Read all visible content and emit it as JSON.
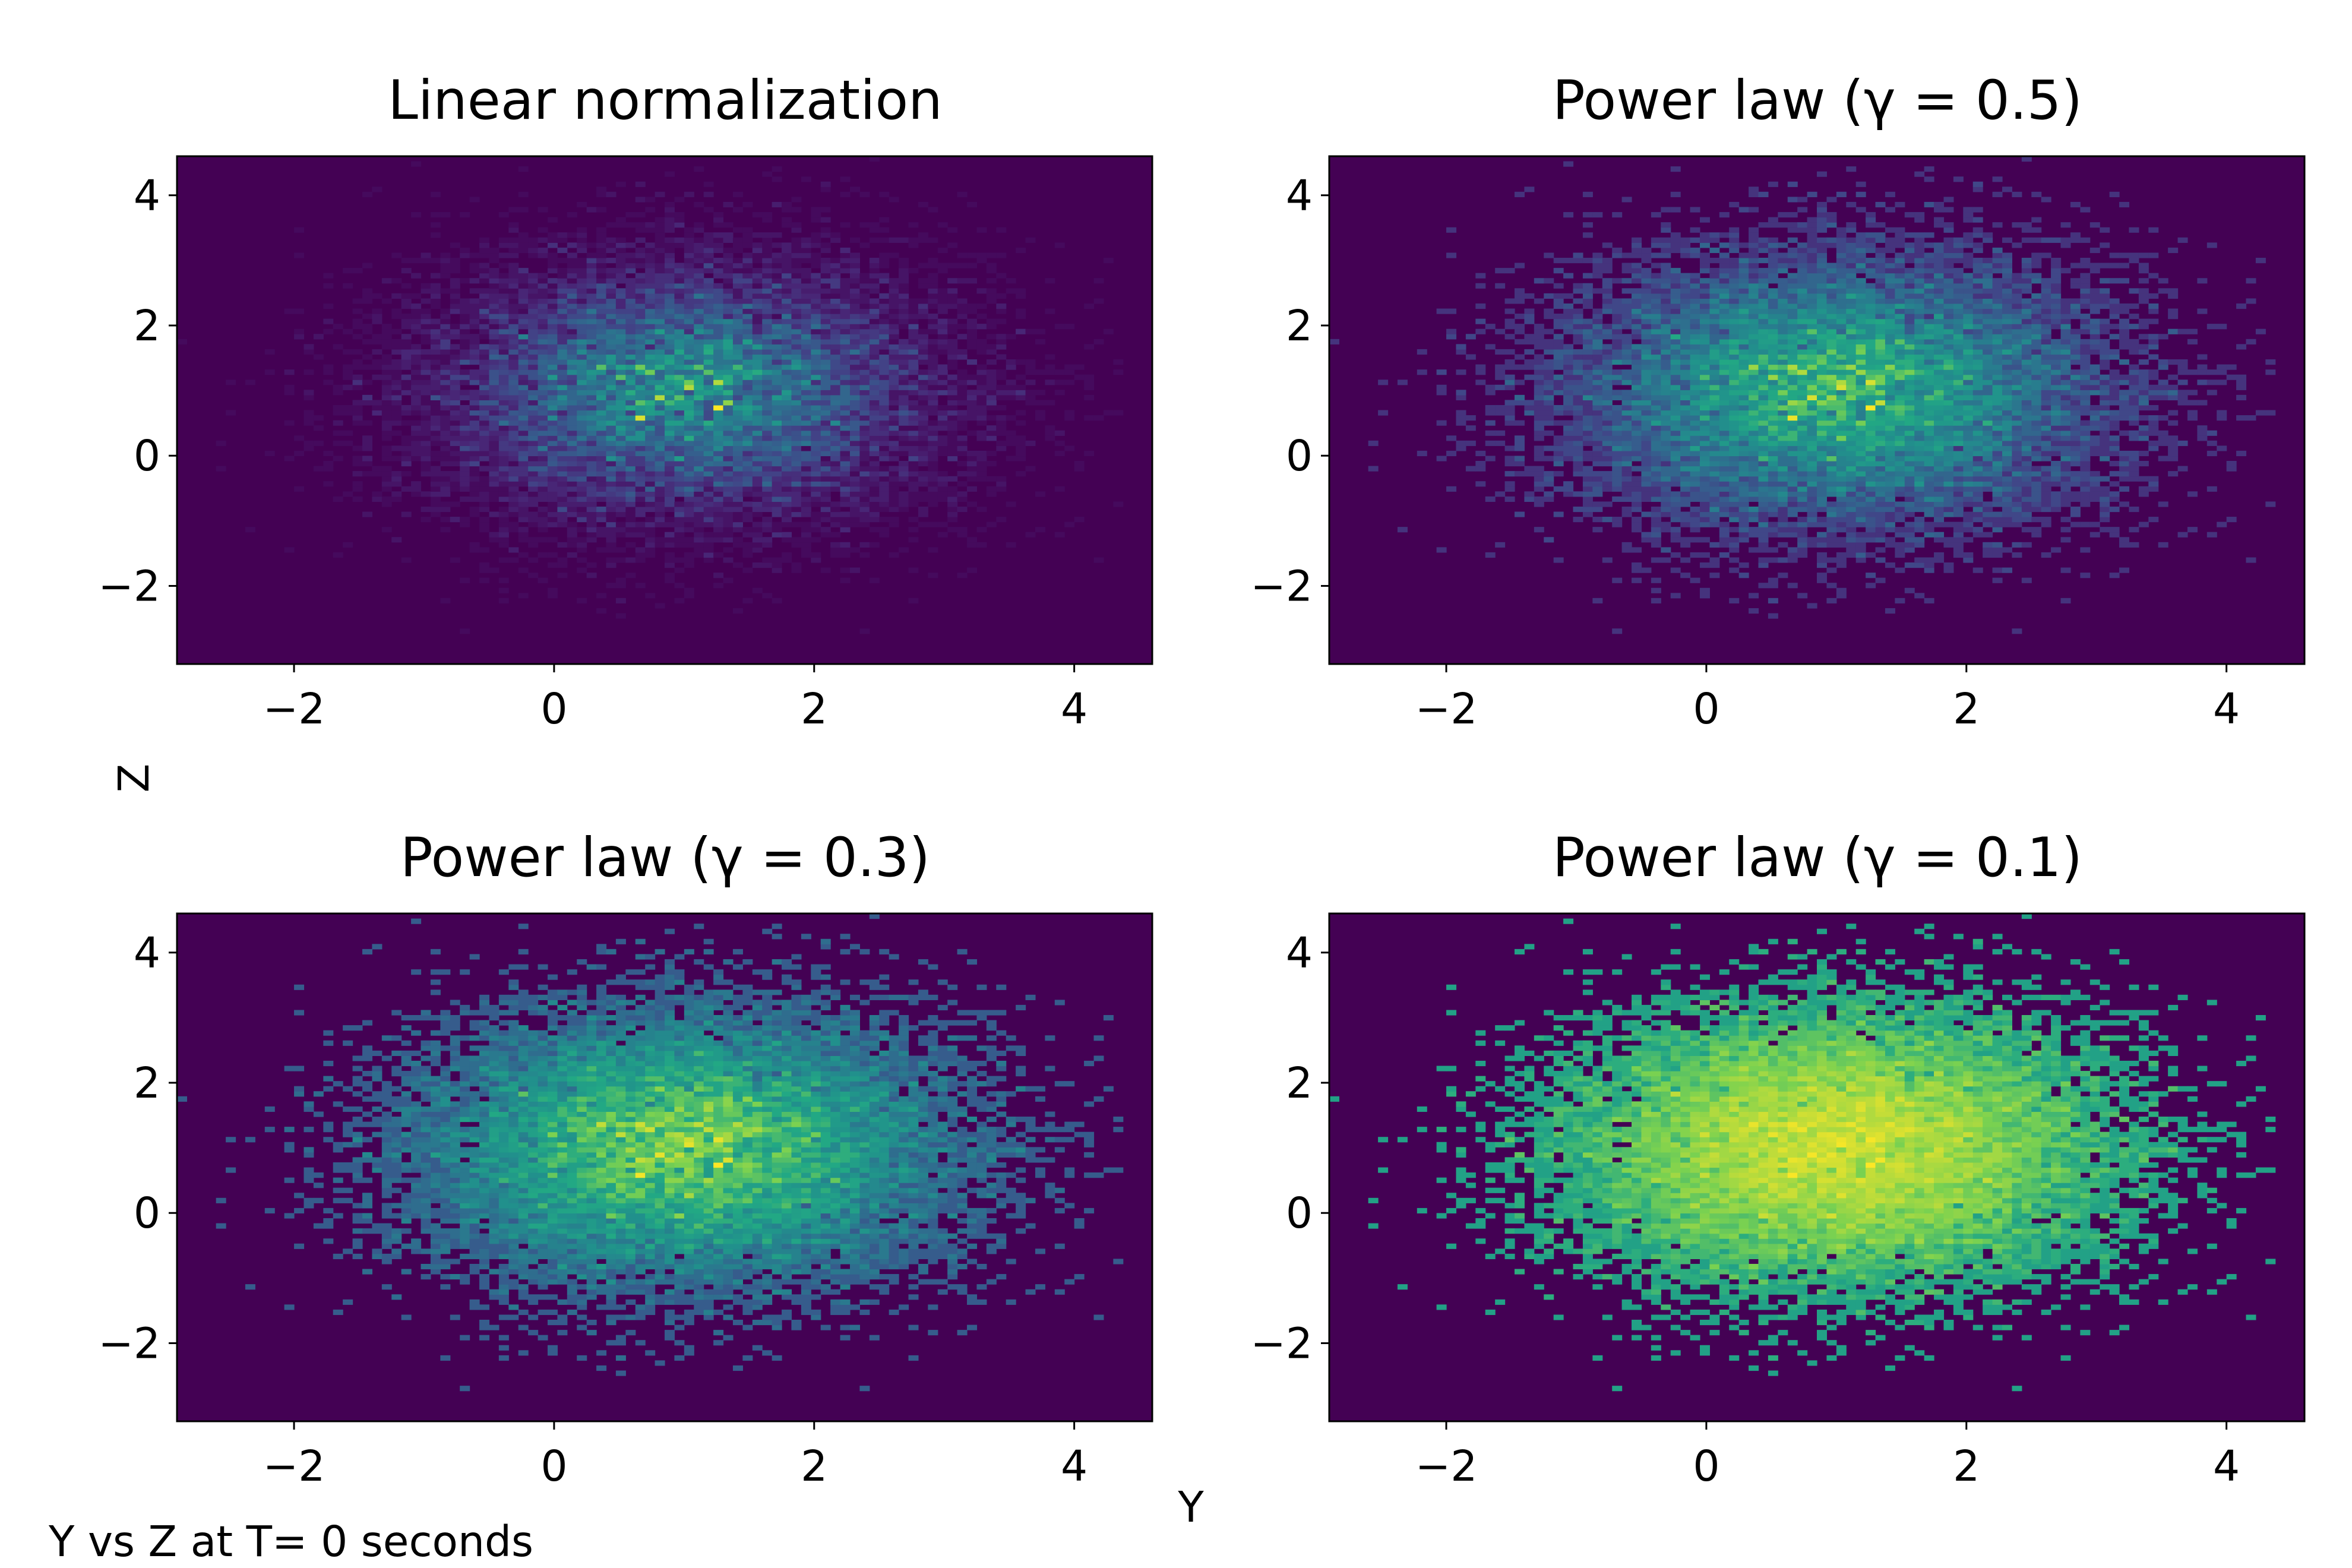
{
  "figure": {
    "xlabel": "Y",
    "ylabel": "Z",
    "caption": "Y vs Z at T= 0 seconds"
  },
  "colors": {
    "colormap": "viridis",
    "background_bin": "#440154",
    "axes_frame": "#000000"
  },
  "chart_data": [
    {
      "type": "heatmap",
      "title": "Linear normalization",
      "normalization": "linear",
      "gamma": 1.0,
      "xlim": [
        -2.9,
        4.6
      ],
      "ylim": [
        -3.2,
        4.6
      ],
      "xticks": [
        -2,
        0,
        2,
        4
      ],
      "yticks": [
        -2,
        0,
        2,
        4
      ],
      "xtick_labels": [
        "−2",
        "0",
        "2",
        "4"
      ],
      "ytick_labels": [
        "−2",
        "0",
        "2",
        "4"
      ],
      "bins": [
        100,
        100
      ],
      "distribution": {
        "center": [
          1.0,
          1.0
        ],
        "std": [
          1.0,
          1.0
        ]
      }
    },
    {
      "type": "heatmap",
      "title": "Power law (γ = 0.5)",
      "normalization": "power",
      "gamma": 0.5,
      "xlim": [
        -2.9,
        4.6
      ],
      "ylim": [
        -3.2,
        4.6
      ],
      "xticks": [
        -2,
        0,
        2,
        4
      ],
      "yticks": [
        -2,
        0,
        2,
        4
      ],
      "xtick_labels": [
        "−2",
        "0",
        "2",
        "4"
      ],
      "ytick_labels": [
        "−2",
        "0",
        "2",
        "4"
      ],
      "bins": [
        100,
        100
      ],
      "distribution": {
        "center": [
          1.0,
          1.0
        ],
        "std": [
          1.0,
          1.0
        ]
      }
    },
    {
      "type": "heatmap",
      "title": "Power law (γ = 0.3)",
      "normalization": "power",
      "gamma": 0.3,
      "xlim": [
        -2.9,
        4.6
      ],
      "ylim": [
        -3.2,
        4.6
      ],
      "xticks": [
        -2,
        0,
        2,
        4
      ],
      "yticks": [
        -2,
        0,
        2,
        4
      ],
      "xtick_labels": [
        "−2",
        "0",
        "2",
        "4"
      ],
      "ytick_labels": [
        "−2",
        "0",
        "2",
        "4"
      ],
      "bins": [
        100,
        100
      ],
      "distribution": {
        "center": [
          1.0,
          1.0
        ],
        "std": [
          1.0,
          1.0
        ]
      }
    },
    {
      "type": "heatmap",
      "title": "Power law (γ = 0.1)",
      "normalization": "power",
      "gamma": 0.1,
      "xlim": [
        -2.9,
        4.6
      ],
      "ylim": [
        -3.2,
        4.6
      ],
      "xticks": [
        -2,
        0,
        2,
        4
      ],
      "yticks": [
        -2,
        0,
        2,
        4
      ],
      "xtick_labels": [
        "−2",
        "0",
        "2",
        "4"
      ],
      "ytick_labels": [
        "−2",
        "0",
        "2",
        "4"
      ],
      "bins": [
        100,
        100
      ],
      "distribution": {
        "center": [
          1.0,
          1.0
        ],
        "std": [
          1.0,
          1.0
        ]
      }
    }
  ]
}
